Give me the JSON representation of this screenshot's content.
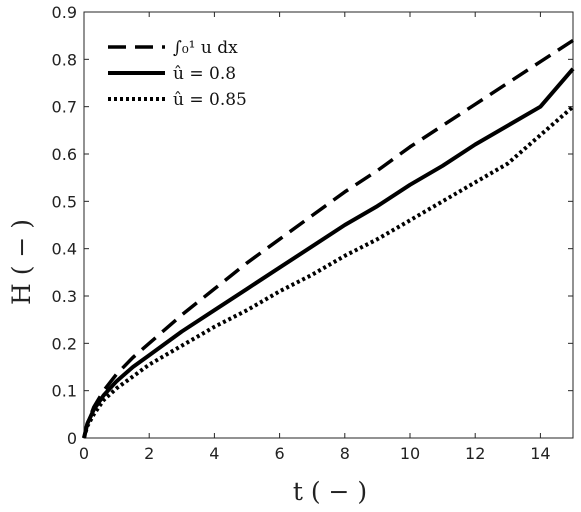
{
  "chart_data": {
    "type": "line",
    "xlabel": "t ( − )",
    "ylabel": "H ( − )",
    "xlim": [
      0,
      15
    ],
    "ylim": [
      0,
      0.9
    ],
    "xticks": [
      "0",
      "2",
      "4",
      "6",
      "8",
      "10",
      "12",
      "14"
    ],
    "yticks": [
      "0",
      "0.1",
      "0.2",
      "0.3",
      "0.4",
      "0.5",
      "0.6",
      "0.7",
      "0.8",
      "0.9"
    ],
    "grid": false,
    "legend": "top-left",
    "series": [
      {
        "name": "∫₀¹ u dx",
        "style": "dashed",
        "color": "#000000",
        "x": [
          0,
          0.1,
          0.3,
          0.6,
          1,
          1.5,
          2,
          3,
          4,
          5,
          6,
          7,
          8,
          9,
          10,
          11,
          12,
          13,
          14,
          15
        ],
        "y": [
          0,
          0.03,
          0.065,
          0.1,
          0.135,
          0.17,
          0.2,
          0.26,
          0.315,
          0.37,
          0.42,
          0.47,
          0.52,
          0.565,
          0.615,
          0.66,
          0.705,
          0.75,
          0.795,
          0.84
        ]
      },
      {
        "name": "û = 0.8",
        "style": "solid",
        "color": "#000000",
        "x": [
          0,
          0.1,
          0.3,
          0.6,
          1,
          1.5,
          2,
          3,
          4,
          5,
          6,
          7,
          8,
          9,
          10,
          11,
          12,
          13,
          14,
          15
        ],
        "y": [
          0,
          0.03,
          0.06,
          0.09,
          0.12,
          0.15,
          0.175,
          0.225,
          0.27,
          0.315,
          0.36,
          0.405,
          0.45,
          0.49,
          0.535,
          0.575,
          0.62,
          0.66,
          0.7,
          0.78
        ]
      },
      {
        "name": "û = 0.85",
        "style": "dotted",
        "color": "#000000",
        "x": [
          0,
          0.1,
          0.3,
          0.6,
          1,
          1.5,
          2,
          3,
          4,
          5,
          6,
          7,
          8,
          9,
          10,
          11,
          12,
          13,
          14,
          15
        ],
        "y": [
          0,
          0.025,
          0.05,
          0.08,
          0.105,
          0.13,
          0.155,
          0.195,
          0.235,
          0.27,
          0.31,
          0.345,
          0.385,
          0.42,
          0.46,
          0.5,
          0.54,
          0.58,
          0.64,
          0.7
        ]
      }
    ]
  }
}
